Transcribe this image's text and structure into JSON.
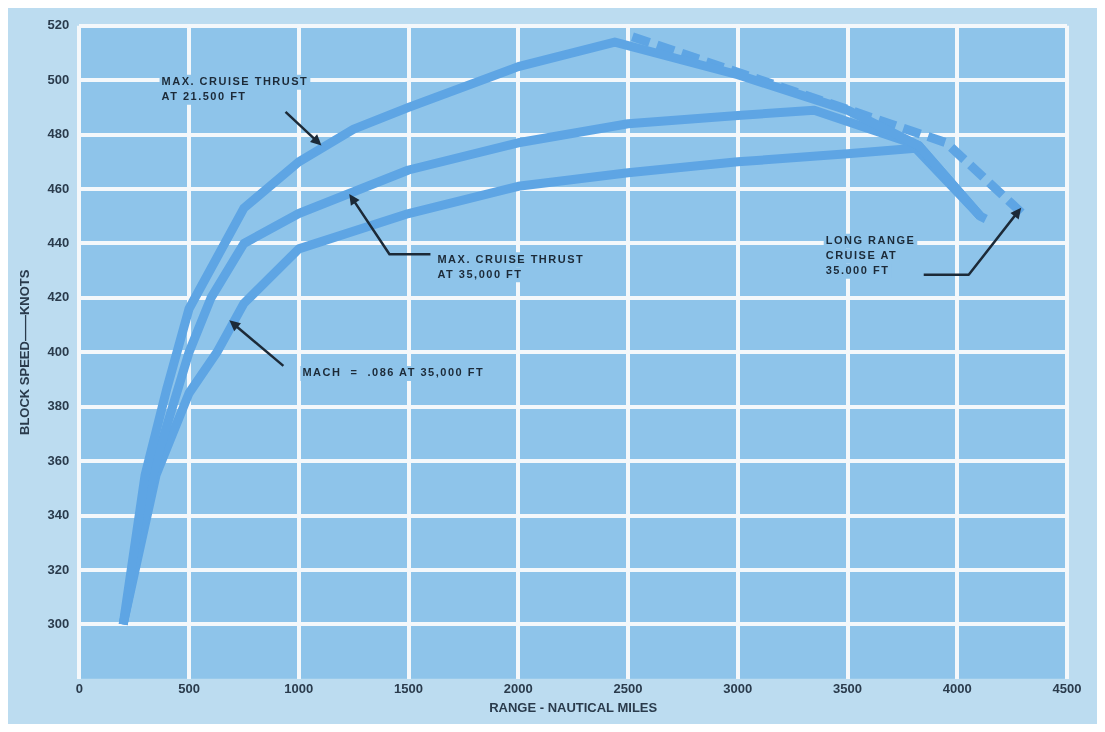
{
  "chart_data": {
    "type": "line",
    "xlabel": "RANGE - NAUTICAL MILES",
    "ylabel": "BLOCK SPEED——KNOTS",
    "xlim": [
      0,
      4500
    ],
    "xticks": [
      0,
      500,
      1000,
      1500,
      2000,
      2500,
      3000,
      3500,
      4000,
      4500
    ],
    "ylim": [
      280,
      520
    ],
    "yticks": [
      300,
      320,
      340,
      360,
      380,
      400,
      420,
      440,
      460,
      480,
      500,
      520
    ],
    "grid": true,
    "legend": false,
    "marker": "none",
    "series": [
      {
        "color": "#5ea5e4",
        "line_style": "solid",
        "x": [
          200,
          300,
          400,
          500,
          750,
          1000,
          1250,
          1500,
          2000,
          2440,
          3000,
          3500,
          3824,
          4105,
          4130
        ],
        "values": [
          300,
          355,
          387,
          416,
          453,
          470,
          482,
          490,
          505,
          514,
          502,
          489,
          476,
          450,
          449
        ]
      },
      {
        "color": "#5ea5e4",
        "line_style": "solid",
        "x": [
          200,
          350,
          500,
          600,
          750,
          1000,
          1500,
          2000,
          2500,
          3000,
          3348,
          3824,
          4105
        ],
        "values": [
          300,
          360,
          400,
          420,
          440,
          451,
          467,
          477,
          484,
          487,
          489,
          476,
          450
        ]
      },
      {
        "color": "#5ea5e4",
        "line_style": "solid",
        "x": [
          200,
          350,
          500,
          627,
          750,
          1000,
          1500,
          2000,
          2500,
          3000,
          3500,
          3810,
          4105
        ],
        "values": [
          300,
          355,
          385,
          400,
          418,
          438,
          451,
          461,
          466,
          470,
          473,
          475,
          450
        ]
      },
      {
        "color": "#5ea5e4",
        "line_style": "dashed",
        "x": [
          2520,
          3950,
          4310
        ],
        "values": [
          516,
          477,
          450
        ]
      }
    ],
    "annotations": [
      {
        "text": "MAX. CRUISE THRUST\nAT 21.500 FT",
        "x": 1090,
        "y": 477
      },
      {
        "text": "MAX. CRUISE THRUST\nAT 35,000 FT",
        "x": 1240,
        "y": 457
      },
      "MACH  =  .086 AT 35,000 FT",
      {
        "text": "LONG RANGE\nCRUISE AT\n35.000 FT",
        "x": 4280,
        "y": 452
      }
    ]
  }
}
